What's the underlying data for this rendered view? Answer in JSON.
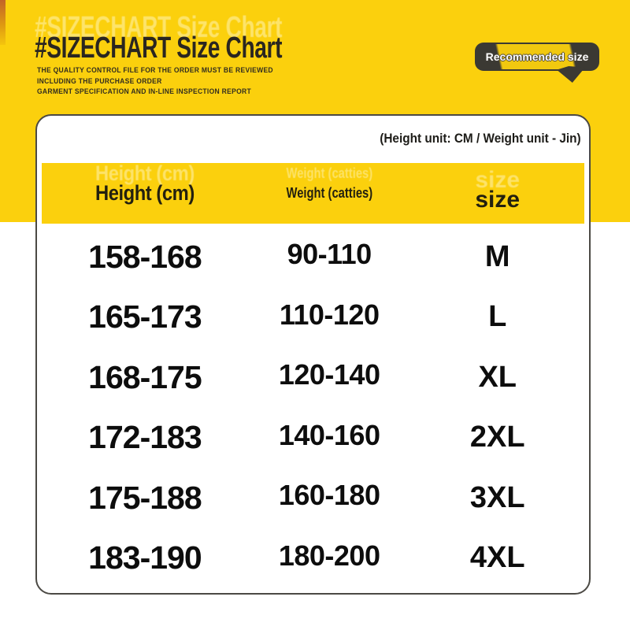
{
  "colors": {
    "accent_yellow": "#FBD00D",
    "badge_dark": "#3B3933",
    "text_dark": "#2A2620"
  },
  "header": {
    "title": "#SIZECHART Size Chart",
    "subtitle_lines": [
      "THE QUALITY CONTROL FILE FOR THE ORDER MUST BE REVIEWED",
      "INCLUDING THE PURCHASE ORDER",
      "GARMENT SPECIFICATION AND IN-LINE INSPECTION REPORT"
    ],
    "badge_label": "Recommended size"
  },
  "card": {
    "units_note": "(Height unit: CM / Weight unit - Jin)"
  },
  "chart_data": {
    "type": "table",
    "title": "Size Chart",
    "columns": [
      "Height (cm)",
      "Weight (catties)",
      "size"
    ],
    "rows": [
      {
        "height": "158-168",
        "weight": "90-110",
        "size": "M"
      },
      {
        "height": "165-173",
        "weight": "110-120",
        "size": "L"
      },
      {
        "height": "168-175",
        "weight": "120-140",
        "size": "XL"
      },
      {
        "height": "172-183",
        "weight": "140-160",
        "size": "2XL"
      },
      {
        "height": "175-188",
        "weight": "160-180",
        "size": "3XL"
      },
      {
        "height": "183-190",
        "weight": "180-200",
        "size": "4XL"
      }
    ]
  }
}
